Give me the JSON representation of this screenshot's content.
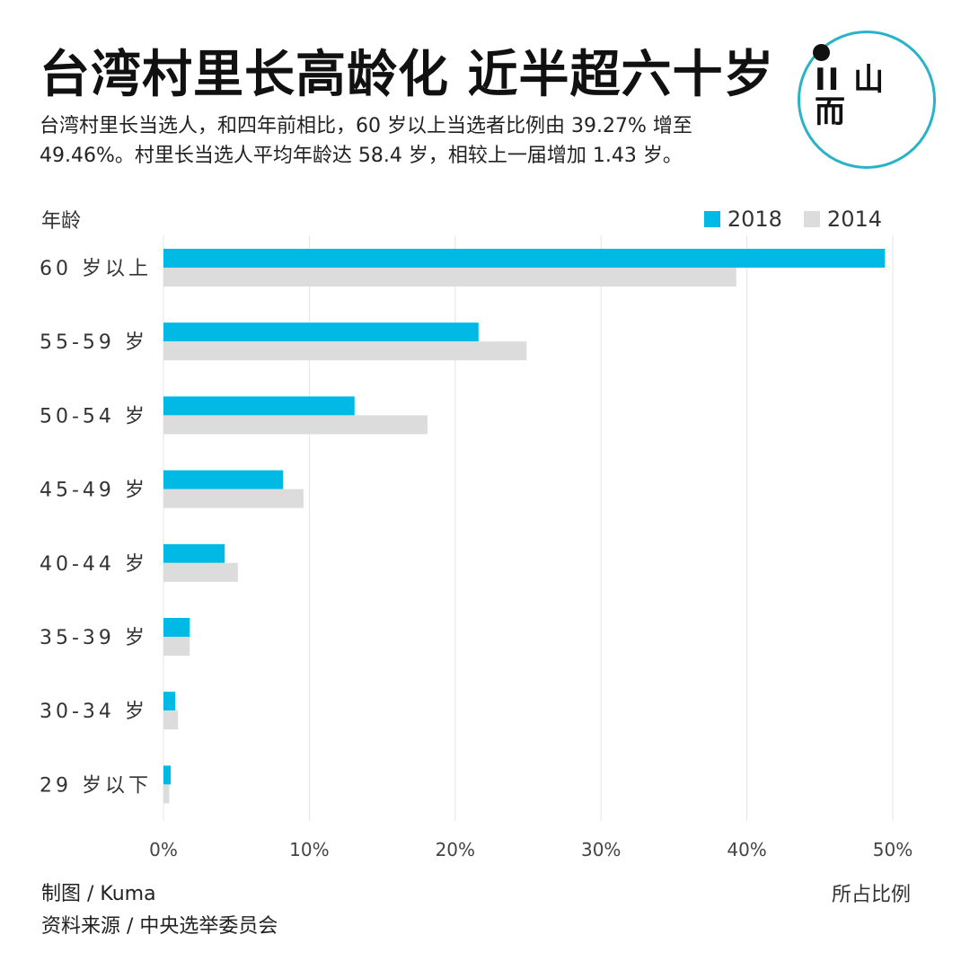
{
  "header": {
    "title": "台湾村里长高龄化  近半超六十岁",
    "subtitle": "台湾村里长当选人，和四年前相比，60 岁以上当选者比例由 39.27% 增至 49.46%。村里长当选人平均年龄达 58.4 岁，相较上一届增加 1.43 岁。"
  },
  "logo": {
    "text_line1": "II 山",
    "text_line2": "  而",
    "icon": "brand-logo-icon"
  },
  "footer": {
    "chart_by": "制图 / Kuma",
    "source": "资料来源 / 中央选举委员会"
  },
  "colors": {
    "s2018": "#00b9e4",
    "s2014": "#dcdcdc",
    "grid": "#e4e4e4",
    "logo_ring": "#2ab3c8"
  },
  "chart_data": {
    "type": "bar",
    "orientation": "horizontal",
    "ylabel": "年龄",
    "xlabel": "所占比例",
    "categories": [
      "60 岁以上",
      "55-59 岁",
      "50-54 岁",
      "45-49 岁",
      "40-44 岁",
      "35-39 岁",
      "30-34 岁",
      "29 岁以下"
    ],
    "series": [
      {
        "name": "2018",
        "values": [
          49.46,
          21.6,
          13.1,
          8.2,
          4.2,
          1.8,
          0.8,
          0.5
        ]
      },
      {
        "name": "2014",
        "values": [
          39.27,
          24.9,
          18.1,
          9.6,
          5.1,
          1.8,
          1.0,
          0.4
        ]
      }
    ],
    "xlim": [
      0,
      50
    ],
    "xticks": [
      "0%",
      "10%",
      "20%",
      "30%",
      "40%",
      "50%"
    ],
    "grid": "vertical",
    "legend_position": "top-right"
  }
}
